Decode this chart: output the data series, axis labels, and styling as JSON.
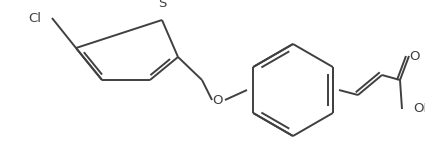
{
  "background_color": "#ffffff",
  "line_color": "#404040",
  "text_color": "#404040",
  "line_width": 1.4,
  "font_size": 9.5,
  "figsize": [
    4.25,
    1.64
  ],
  "dpi": 100,
  "xlim": [
    0,
    425
  ],
  "ylim": [
    0,
    164
  ]
}
